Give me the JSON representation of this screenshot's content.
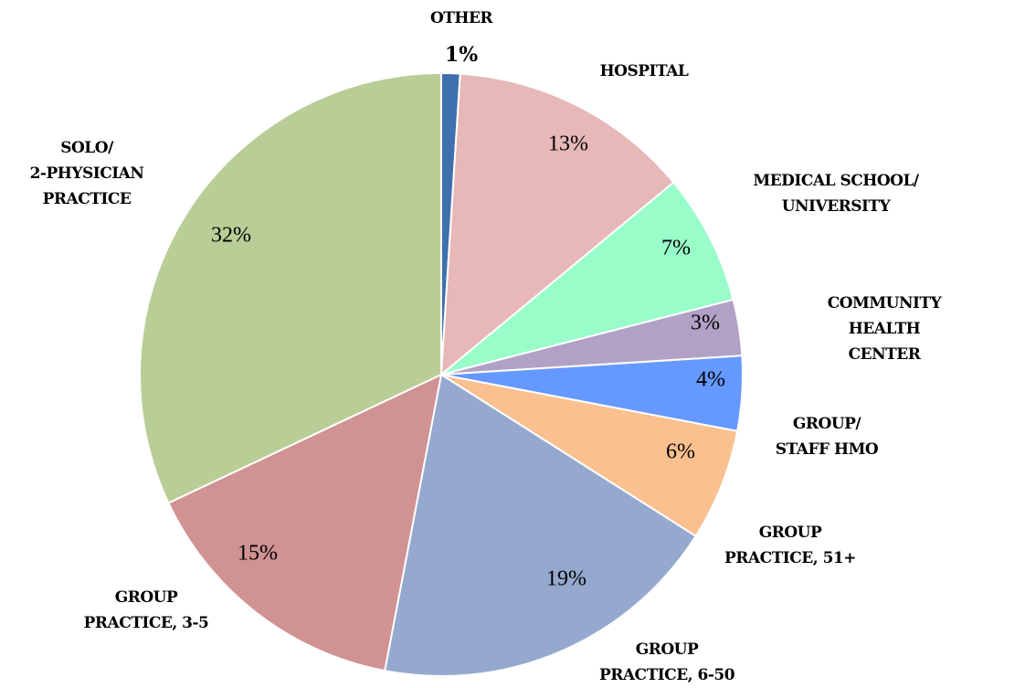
{
  "chart_data": {
    "type": "pie",
    "categories": [
      "OTHER",
      "HOSPITAL",
      "MEDICAL SCHOOL/\nUNIVERSITY",
      "COMMUNITY HEALTH\nCENTER",
      "GROUP/\nSTAFF HMO",
      "GROUP\nPRACTICE, 51+",
      "GROUP\nPRACTICE, 6-50",
      "GROUP\nPRACTICE, 3-5",
      "SOLO/\n2-PHYSICIAN\nPRACTICE"
    ],
    "values": [
      1,
      13,
      7,
      3,
      4,
      6,
      19,
      15,
      32
    ],
    "value_labels": [
      "1%",
      "13%",
      "7%",
      "3%",
      "4%",
      "6%",
      "19%",
      "15%",
      "32%"
    ],
    "colors": [
      "#3f70ad",
      "#e6b8b7",
      "#99fdca",
      "#b2a1c7",
      "#6699ff",
      "#fac090",
      "#95a9cf",
      "#d09292",
      "#b9cd96"
    ]
  }
}
